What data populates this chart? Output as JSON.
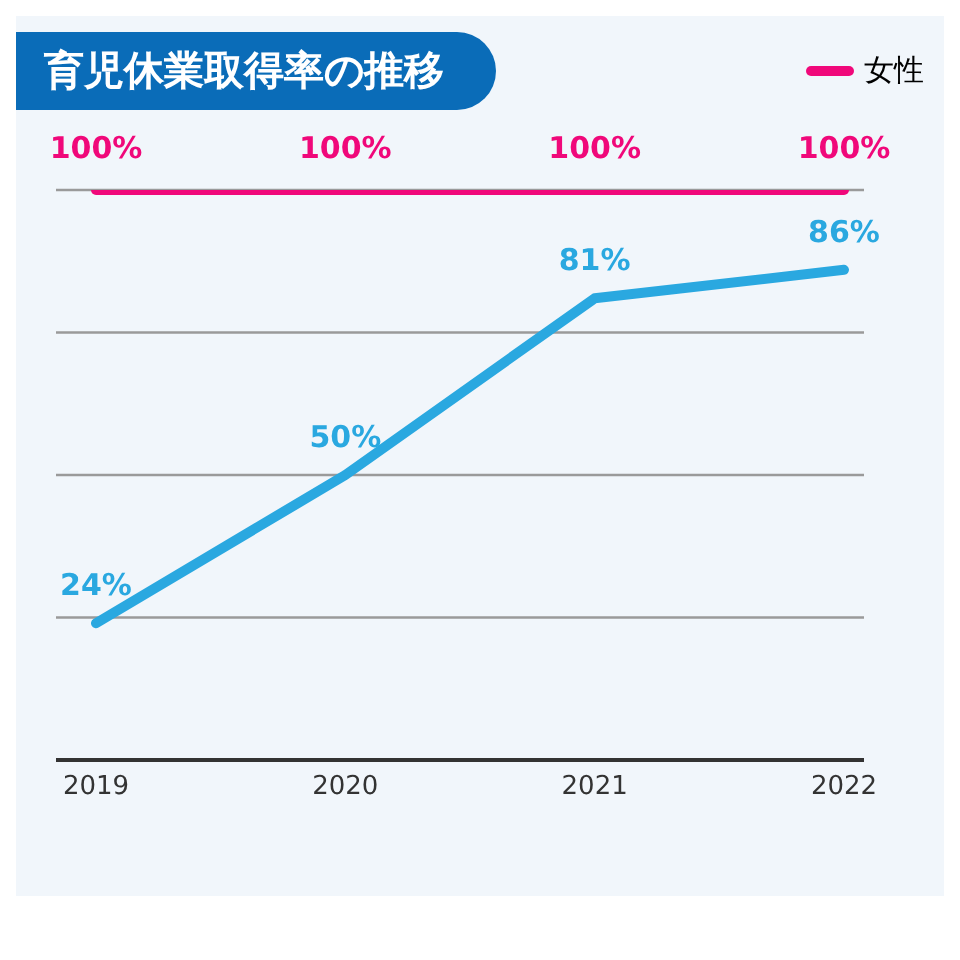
{
  "chart_data": {
    "type": "line",
    "title": "育児休業取得率の推移",
    "categories": [
      "2019",
      "2020",
      "2021",
      "2022"
    ],
    "series": [
      {
        "name": "女性",
        "color": "#f0087a",
        "values": [
          100,
          100,
          100,
          100
        ],
        "value_labels": [
          "100%",
          "100%",
          "100%",
          "100%"
        ]
      },
      {
        "color": "#2aa8e0",
        "values": [
          24,
          50,
          81,
          86
        ],
        "value_labels": [
          "24%",
          "50%",
          "81%",
          "86%"
        ]
      }
    ],
    "ylim": [
      0,
      100
    ],
    "yticks": [
      {
        "value": 25,
        "label": null
      },
      {
        "value": 50,
        "label": null
      },
      {
        "value": 75,
        "label": null
      },
      {
        "value": 100,
        "label": null
      }
    ],
    "tick_labels": "x",
    "grid": "y",
    "legend": "top right",
    "marker": "none",
    "line_style": "solid"
  }
}
